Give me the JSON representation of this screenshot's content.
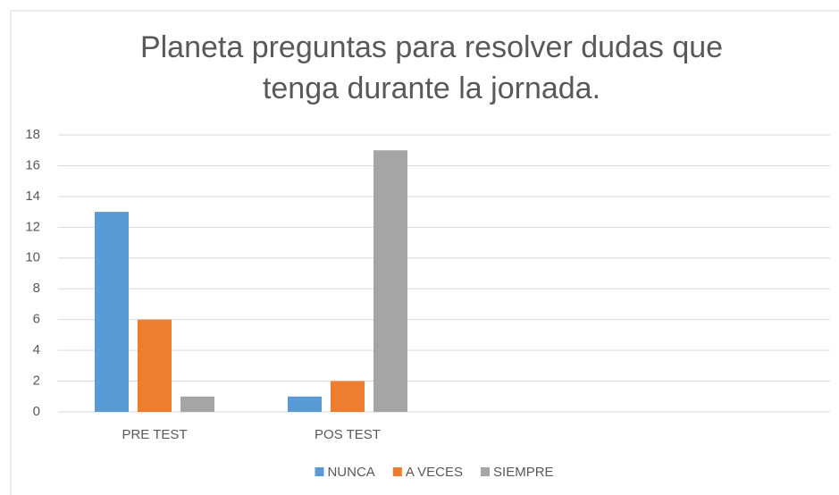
{
  "chart_data": {
    "type": "bar",
    "title": "Planeta preguntas para resolver dudas que tenga durante la jornada.",
    "categories": [
      "PRE TEST",
      "POS TEST",
      null,
      null
    ],
    "series": [
      {
        "name": "NUNCA",
        "color": "#5b9bd5",
        "values": [
          13,
          1,
          null,
          null
        ]
      },
      {
        "name": "A VECES",
        "color": "#ed7d31",
        "values": [
          6,
          2,
          null,
          null
        ]
      },
      {
        "name": "SIEMPRE",
        "color": "#a5a5a5",
        "values": [
          1,
          17,
          null,
          null
        ]
      }
    ],
    "ylim": [
      0,
      18
    ],
    "yticks": [
      0,
      2,
      4,
      6,
      8,
      10,
      12,
      14,
      16,
      18
    ],
    "grid": true,
    "legend": "bottom"
  }
}
